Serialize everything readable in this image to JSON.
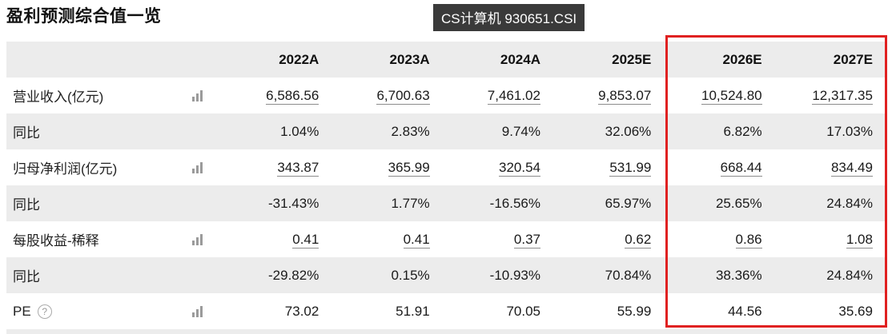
{
  "header": {
    "title": "盈利预测综合值一览",
    "badge": "CS计算机 930651.CSI"
  },
  "icons": {
    "help_glyph": "?"
  },
  "table": {
    "columns": [
      "2022A",
      "2023A",
      "2024A",
      "2025E",
      "2026E",
      "2027E"
    ],
    "rows": [
      {
        "label": "营业收入(亿元)",
        "values": [
          "6,586.56",
          "6,700.63",
          "7,461.02",
          "9,853.07",
          "10,524.80",
          "12,317.35"
        ]
      },
      {
        "label": "同比",
        "values": [
          "1.04%",
          "2.83%",
          "9.74%",
          "32.06%",
          "6.82%",
          "17.03%"
        ]
      },
      {
        "label": "归母净利润(亿元)",
        "values": [
          "343.87",
          "365.99",
          "320.54",
          "531.99",
          "668.44",
          "834.49"
        ]
      },
      {
        "label": "同比",
        "values": [
          "-31.43%",
          "1.77%",
          "-16.56%",
          "65.97%",
          "25.65%",
          "24.84%"
        ]
      },
      {
        "label": "每股收益-稀释",
        "values": [
          "0.41",
          "0.41",
          "0.37",
          "0.62",
          "0.86",
          "1.08"
        ]
      },
      {
        "label": "同比",
        "values": [
          "-29.82%",
          "0.15%",
          "-10.93%",
          "70.84%",
          "38.36%",
          "24.84%"
        ]
      },
      {
        "label": "PE",
        "values": [
          "73.02",
          "51.91",
          "70.05",
          "55.99",
          "44.56",
          "35.69"
        ]
      }
    ],
    "highlight": {
      "columns": [
        "2026E",
        "2027E"
      ],
      "border_color": "#e02121"
    }
  },
  "colors": {
    "badge_bg": "#3a3a3a",
    "row_alt_bg": "#ececec",
    "text": "#1a1a1a",
    "underline": "#8c8c8c",
    "highlight_border": "#e02121"
  }
}
